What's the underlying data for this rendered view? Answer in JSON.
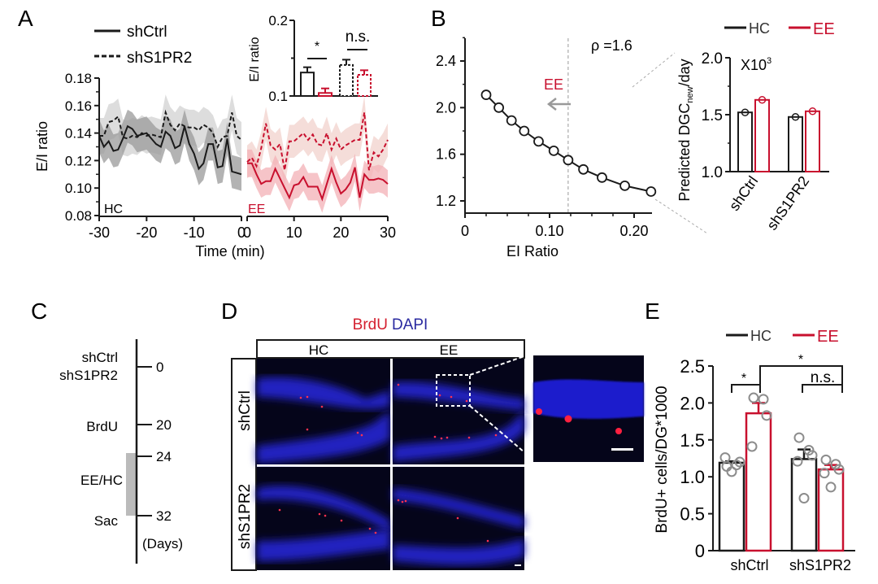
{
  "colors": {
    "black": "#1a1a1a",
    "red": "#c8102e",
    "grey_band": "#9a9a9a",
    "light_grey_band": "#d4d4d4",
    "red_band": "#f3b0b6",
    "light_red_band": "#f2d4cf",
    "dapi_blue": "#1a1acc",
    "arrow_grey": "#999999"
  },
  "panel_labels": {
    "a": "A",
    "b": "B",
    "c": "C",
    "d": "D",
    "e": "E"
  },
  "chart_data": [
    {
      "id": "A-timecourse",
      "type": "line",
      "title": "",
      "legend": [
        {
          "name": "shCtrl",
          "style": "solid"
        },
        {
          "name": "shS1PR2",
          "style": "dashed"
        }
      ],
      "legend_position": "top-left",
      "ylabel": "E/I ratio",
      "xlabel": "Time (min)",
      "ylim": [
        0.08,
        0.18
      ],
      "yticks": [
        "0.18",
        "0.16",
        "0.14",
        "0.12",
        "0.10",
        "0.08"
      ],
      "segments": [
        {
          "condition": "HC",
          "xlim": [
            -30,
            0
          ],
          "xticks": [
            "-30",
            "-20",
            "-10",
            "0"
          ],
          "x": [
            -30,
            -29,
            -28,
            -27,
            -26,
            -25,
            -24,
            -23,
            -22,
            -21,
            -20,
            -19,
            -18,
            -17,
            -16,
            -15,
            -14,
            -13,
            -12,
            -11,
            -10,
            -9,
            -8,
            -7,
            -6,
            -5,
            -4,
            -3,
            -2,
            -1,
            0
          ],
          "series": [
            {
              "name": "shCtrl",
              "style": "solid",
              "color": "#1a1a1a",
              "values": [
                0.138,
                0.13,
                0.134,
                0.127,
                0.128,
                0.136,
                0.145,
                0.143,
                0.138,
                0.139,
                0.14,
                0.136,
                0.132,
                0.13,
                0.141,
                0.138,
                0.129,
                0.131,
                0.145,
                0.132,
                0.125,
                0.114,
                0.118,
                0.132,
                0.132,
                0.115,
                0.116,
                0.136,
                0.112,
                0.111,
                0.11
              ],
              "sem": 0.012
            },
            {
              "name": "shS1PR2",
              "style": "dashed",
              "color": "#1a1a1a",
              "values": [
                0.138,
                0.138,
                0.148,
                0.149,
                0.152,
                0.137,
                0.136,
                0.138,
                0.137,
                0.14,
                0.138,
                0.139,
                0.138,
                0.137,
                0.155,
                0.146,
                0.142,
                0.147,
                0.145,
                0.144,
                0.144,
                0.142,
                0.146,
                0.144,
                0.14,
                0.13,
                0.137,
                0.138,
                0.155,
                0.138,
                0.135
              ],
              "sem": 0.013
            }
          ],
          "corner_label": "HC"
        },
        {
          "condition": "EE",
          "xlim": [
            0,
            30
          ],
          "xticks": [
            "0",
            "10",
            "20",
            "30"
          ],
          "x": [
            0,
            1,
            2,
            3,
            4,
            5,
            6,
            7,
            8,
            9,
            10,
            11,
            12,
            13,
            14,
            15,
            16,
            17,
            18,
            19,
            20,
            21,
            22,
            23,
            24,
            25,
            26,
            27,
            28,
            29,
            30
          ],
          "series": [
            {
              "name": "shCtrl",
              "style": "solid",
              "color": "#c8102e",
              "values": [
                0.118,
                0.118,
                0.11,
                0.103,
                0.105,
                0.105,
                0.114,
                0.107,
                0.1,
                0.093,
                0.102,
                0.103,
                0.108,
                0.101,
                0.101,
                0.101,
                0.092,
                0.103,
                0.114,
                0.104,
                0.096,
                0.099,
                0.104,
                0.115,
                0.093,
                0.11,
                0.106,
                0.106,
                0.107,
                0.106,
                0.103
              ],
              "sem": 0.01
            },
            {
              "name": "shS1PR2",
              "style": "dashed",
              "color": "#c8102e",
              "values": [
                0.119,
                0.122,
                0.116,
                0.129,
                0.147,
                0.131,
                0.128,
                0.132,
                0.113,
                0.134,
                0.134,
                0.137,
                0.14,
                0.135,
                0.139,
                0.132,
                0.131,
                0.14,
                0.128,
                0.136,
                0.128,
                0.131,
                0.133,
                0.135,
                0.135,
                0.155,
                0.113,
                0.126,
                0.123,
                0.128,
                0.135
              ],
              "sem": 0.012
            }
          ],
          "corner_label": "EE"
        }
      ]
    },
    {
      "id": "A-inset",
      "type": "bar",
      "ylabel": "E/I ratio",
      "ylim": [
        0.1,
        0.2
      ],
      "yticks": [
        "0.2",
        "0.1"
      ],
      "bars": [
        {
          "group": "shCtrl",
          "condition": "HC",
          "value": 0.131,
          "err": 0.007,
          "style": "solid",
          "color": "#1a1a1a"
        },
        {
          "group": "shCtrl",
          "condition": "EE",
          "value": 0.104,
          "err": 0.006,
          "style": "solid",
          "color": "#c8102e"
        },
        {
          "group": "shS1PR2",
          "condition": "HC",
          "value": 0.141,
          "err": 0.007,
          "style": "dashed",
          "color": "#1a1a1a"
        },
        {
          "group": "shS1PR2",
          "condition": "EE",
          "value": 0.128,
          "err": 0.006,
          "style": "dashed",
          "color": "#c8102e"
        }
      ],
      "annotations": [
        "*",
        "n.s."
      ]
    },
    {
      "id": "B-model",
      "type": "scatter",
      "xlabel": "EI Ratio",
      "ylabel": "",
      "xlim": [
        0,
        0.22
      ],
      "ylim": [
        1.1,
        2.6
      ],
      "xticks": [
        "0",
        "0.10",
        "0.20"
      ],
      "yticks": [
        "2.4",
        "2.0",
        "1.6",
        "1.2"
      ],
      "x": [
        0.025,
        0.04,
        0.055,
        0.07,
        0.087,
        0.105,
        0.122,
        0.14,
        0.162,
        0.189,
        0.22
      ],
      "y": [
        2.11,
        2.0,
        1.89,
        1.8,
        1.71,
        1.63,
        1.55,
        1.47,
        1.4,
        1.33,
        1.28
      ],
      "annotation": "ρ =1.6",
      "reference_x": 0.122,
      "arrow_label": "EE"
    },
    {
      "id": "B-inset",
      "type": "bar",
      "ylabel": "Predicted DGC",
      "ylabel_sub": "new",
      "ylabel_tail": "/day",
      "multiplier": "X10",
      "multiplier_exp": "3",
      "ylim": [
        1.0,
        2.0
      ],
      "yticks": [
        "2.0",
        "1.5",
        "1.0"
      ],
      "categories": [
        "shCtrl",
        "shS1PR2"
      ],
      "series": [
        {
          "name": "HC",
          "color": "#1a1a1a",
          "values": [
            1.52,
            1.48
          ]
        },
        {
          "name": "EE",
          "color": "#c8102e",
          "values": [
            1.63,
            1.53
          ]
        }
      ],
      "legend_position": "top-right"
    },
    {
      "id": "E-brdu",
      "type": "bar",
      "ylabel": "BrdU+ cells/DG*1000",
      "ylim": [
        0,
        2.5
      ],
      "yticks": [
        "2.5",
        "2.0",
        "1.5",
        "1.0",
        "0.5",
        "0"
      ],
      "categories": [
        "shCtrl",
        "shS1PR2"
      ],
      "series": [
        {
          "name": "HC",
          "color": "#1a1a1a",
          "values": [
            1.19,
            1.24
          ],
          "err": [
            0.02,
            0.13
          ],
          "points": [
            [
              1.14,
              1.16,
              1.2,
              1.26,
              1.07
            ],
            [
              1.53,
              1.36,
              1.29,
              1.21,
              0.71
            ]
          ]
        },
        {
          "name": "EE",
          "color": "#c8102e",
          "values": [
            1.86,
            1.1
          ],
          "err": [
            0.14,
            0.06
          ],
          "points": [
            [
              2.07,
              2.05,
              1.83,
              1.41
            ],
            [
              1.23,
              1.17,
              1.1,
              1.05,
              0.86
            ]
          ]
        }
      ],
      "annotations": [
        "*",
        "*",
        "n.s."
      ],
      "legend_position": "top"
    }
  ],
  "panel_c": {
    "timeline": [
      {
        "day": "0",
        "label_lines": [
          "shCtrl",
          "shS1PR2"
        ]
      },
      {
        "day": "20",
        "label_lines": [
          "BrdU"
        ]
      },
      {
        "day": "24",
        "label_lines": []
      },
      {
        "day": "32",
        "label_lines": [
          "Sac"
        ]
      }
    ],
    "bar_label": "EE/HC",
    "units": "(Days)"
  },
  "panel_d": {
    "title_red": "BrdU",
    "title_blue": "DAPI",
    "columns": [
      "HC",
      "EE"
    ],
    "rows": [
      "shCtrl",
      "shS1PR2"
    ]
  }
}
